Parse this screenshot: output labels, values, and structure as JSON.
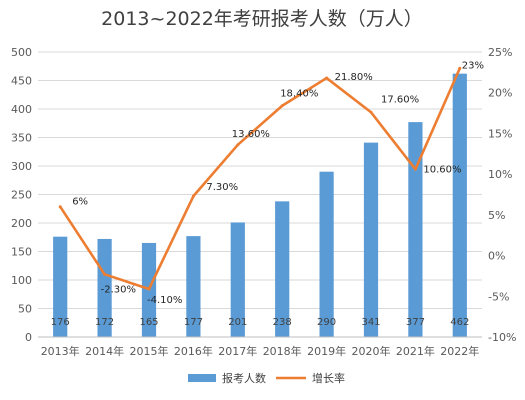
{
  "chart_data": {
    "type": "bar",
    "title": "2013~2022年考研报考人数（万人）",
    "categories": [
      "2013年",
      "2014年",
      "2015年",
      "2016年",
      "2017年",
      "2018年",
      "2019年",
      "2020年",
      "2021年",
      "2022年"
    ],
    "series": [
      {
        "name": "报考人数",
        "type": "bar",
        "axis": "left",
        "color": "#5b9bd5",
        "values": [
          176,
          172,
          165,
          177,
          201,
          238,
          290,
          341,
          377,
          462
        ],
        "labels": [
          "176",
          "172",
          "165",
          "177",
          "201",
          "238",
          "290",
          "341",
          "377",
          "462"
        ]
      },
      {
        "name": "增长率",
        "type": "line",
        "axis": "right",
        "color": "#ed7d31",
        "values": [
          6,
          -2.3,
          -4.1,
          7.3,
          13.6,
          18.4,
          21.8,
          17.6,
          10.6,
          23
        ],
        "labels": [
          "6%",
          "-2.30%",
          "-4.10%",
          "7.30%",
          "13.60%",
          "18.40%",
          "21.80%",
          "17.60%",
          "10.60%",
          "23%"
        ]
      }
    ],
    "y_left": {
      "range": [
        0,
        500
      ],
      "ticks": [
        0,
        50,
        100,
        150,
        200,
        250,
        300,
        350,
        400,
        450,
        500
      ],
      "tick_labels": [
        "0",
        "50",
        "100",
        "150",
        "200",
        "250",
        "300",
        "350",
        "400",
        "450",
        "500"
      ]
    },
    "y_right": {
      "range": [
        -10,
        25
      ],
      "ticks": [
        -10,
        -5,
        0,
        5,
        10,
        15,
        20,
        25
      ],
      "tick_labels": [
        "-10%",
        "-5%",
        "0%",
        "5%",
        "10%",
        "15%",
        "20%",
        "25%"
      ]
    },
    "grid": true,
    "legend_position": "bottom"
  }
}
